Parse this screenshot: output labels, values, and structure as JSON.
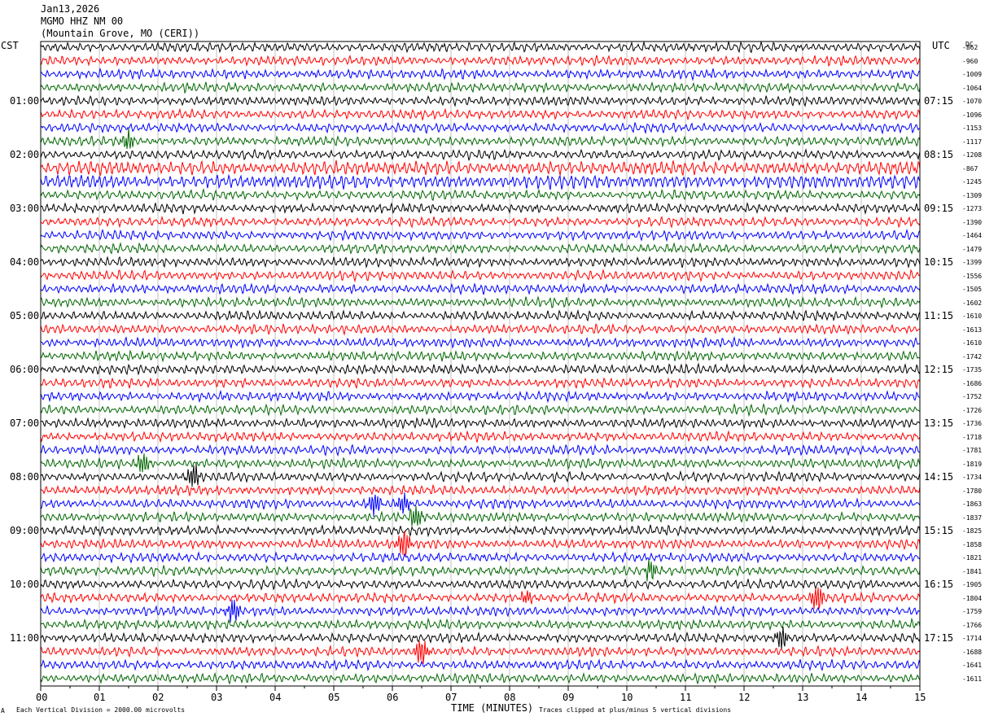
{
  "header": {
    "date": "Jan13,2026",
    "station": "MGMO HHZ NM 00",
    "location": "(Mountain Grove, MO (CERI))"
  },
  "labels": {
    "left_zone": "CST",
    "right_zone": "UTC",
    "dc": "DC",
    "xlabel": "TIME (MINUTES)",
    "scale_note": "Each Vertical Division = 2000.00 microvolts",
    "clip_note": "Traces clipped at plus/minus 5 vertical divisions",
    "corner_mark": "A"
  },
  "chart_data": {
    "type": "line",
    "title": "MGMO HHZ NM 00",
    "xlabel": "TIME (MINUTES)",
    "ylabel": "",
    "xlim": [
      0,
      15
    ],
    "x_ticks": [
      "00",
      "01",
      "02",
      "03",
      "04",
      "05",
      "06",
      "07",
      "08",
      "09",
      "10",
      "11",
      "12",
      "13",
      "14",
      "15"
    ],
    "row_minutes": 15,
    "trace_colors": [
      "#000000",
      "#ff0000",
      "#0000ff",
      "#006600"
    ],
    "left_hour_labels": [
      "01:00",
      "02:00",
      "03:00",
      "04:00",
      "05:00",
      "06:00",
      "07:00",
      "08:00",
      "09:00",
      "10:00",
      "11:00"
    ],
    "right_hour_labels": [
      "07:15",
      "08:15",
      "09:15",
      "10:15",
      "11:15",
      "12:15",
      "13:15",
      "14:15",
      "15:15",
      "16:15",
      "17:15"
    ],
    "dc_offsets": [
      "-862",
      "-960",
      "-1009",
      "-1064",
      "-1070",
      "-1096",
      "-1153",
      "-1117",
      "-1208",
      "-867",
      "-1245",
      "-1309",
      "-1273",
      "-1390",
      "-1464",
      "-1479",
      "-1399",
      "-1556",
      "-1505",
      "-1602",
      "-1610",
      "-1613",
      "-1610",
      "-1742",
      "-1735",
      "-1686",
      "-1752",
      "-1726",
      "-1736",
      "-1718",
      "-1781",
      "-1819",
      "-1734",
      "-1780",
      "-1863",
      "-1837",
      "-1825",
      "-1858",
      "-1821",
      "-1841",
      "-1905",
      "-1804",
      "-1759",
      "-1766",
      "-1714",
      "-1688",
      "-1641",
      "-1611"
    ],
    "events": [
      {
        "row": 7,
        "minute": 1.5,
        "amplitude": 1.6
      },
      {
        "row": 31,
        "minute": 1.75,
        "amplitude": 2.0
      },
      {
        "row": 32,
        "minute": 2.6,
        "amplitude": 2.2
      },
      {
        "row": 34,
        "minute": 5.7,
        "amplitude": 2.0
      },
      {
        "row": 34,
        "minute": 6.2,
        "amplitude": 1.8
      },
      {
        "row": 35,
        "minute": 6.4,
        "amplitude": 2.2
      },
      {
        "row": 37,
        "minute": 6.2,
        "amplitude": 2.4
      },
      {
        "row": 39,
        "minute": 10.4,
        "amplitude": 1.8
      },
      {
        "row": 41,
        "minute": 8.3,
        "amplitude": 1.2
      },
      {
        "row": 41,
        "minute": 13.25,
        "amplitude": 2.4
      },
      {
        "row": 42,
        "minute": 3.3,
        "amplitude": 2.0
      },
      {
        "row": 44,
        "minute": 12.65,
        "amplitude": 1.8
      },
      {
        "row": 45,
        "minute": 6.5,
        "amplitude": 2.4
      }
    ]
  }
}
